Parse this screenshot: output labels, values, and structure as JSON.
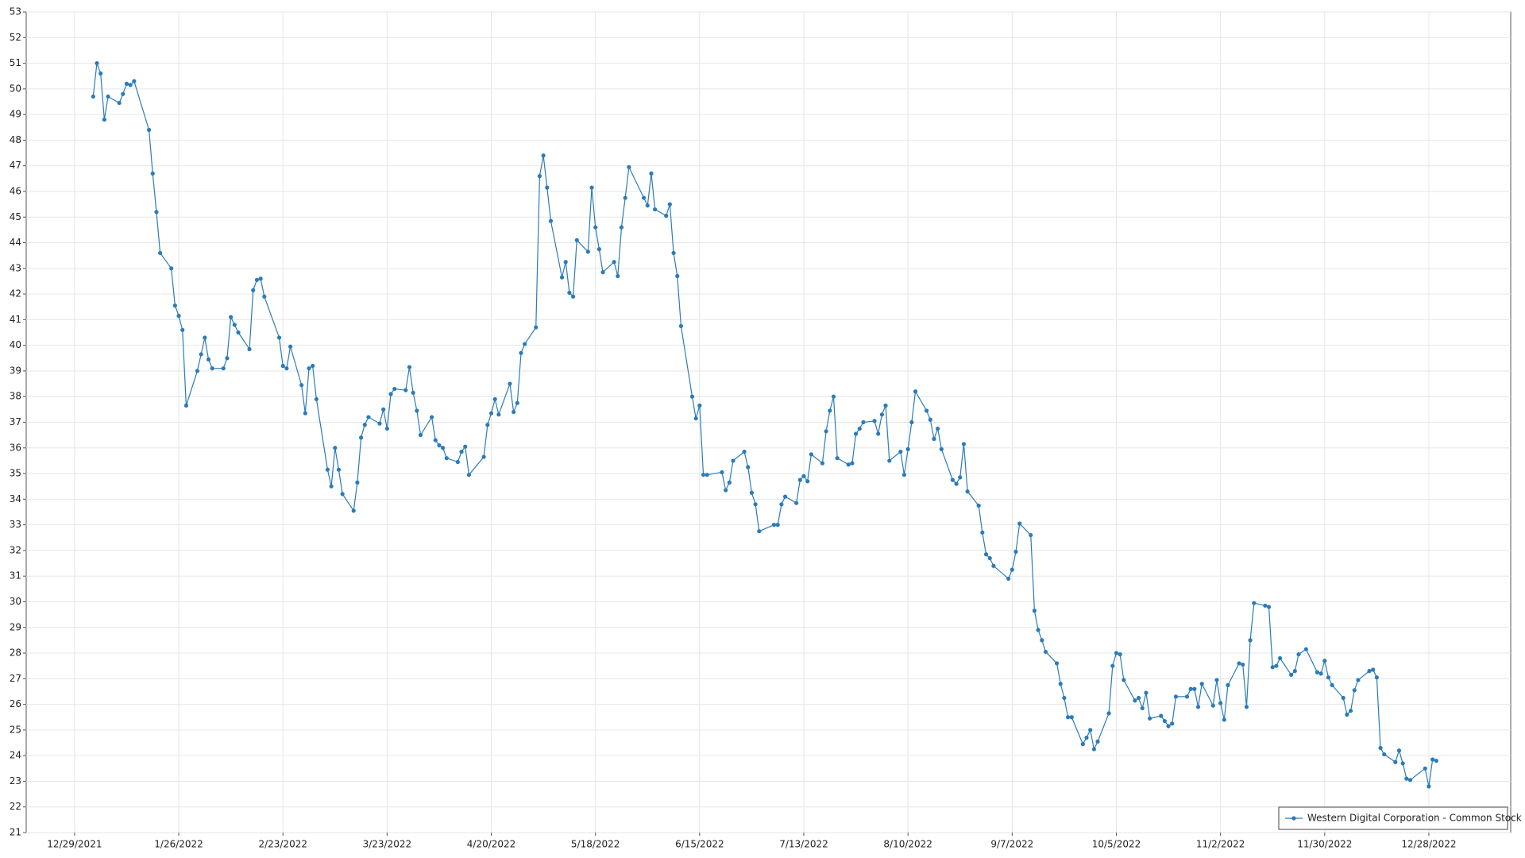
{
  "chart_data": {
    "type": "line",
    "legend": "lower right",
    "grid": true,
    "xlim": [
      "12/16/2021",
      "1/19/2023"
    ],
    "xticks": [
      "12/29/2021",
      "1/26/2022",
      "2/23/2022",
      "3/23/2022",
      "4/20/2022",
      "5/18/2022",
      "6/15/2022",
      "7/13/2022",
      "8/10/2022",
      "9/7/2022",
      "10/5/2022",
      "11/2/2022",
      "11/30/2022",
      "12/28/2022"
    ],
    "ylim": [
      21,
      53
    ],
    "yticks": [
      21,
      22,
      23,
      24,
      25,
      26,
      27,
      28,
      29,
      30,
      31,
      32,
      33,
      34,
      35,
      36,
      37,
      38,
      39,
      40,
      41,
      42,
      43,
      44,
      45,
      46,
      47,
      48,
      49,
      50,
      51,
      52,
      53
    ],
    "x": [
      "1/3/2022",
      "1/4/2022",
      "1/5/2022",
      "1/6/2022",
      "1/7/2022",
      "1/10/2022",
      "1/11/2022",
      "1/12/2022",
      "1/13/2022",
      "1/14/2022",
      "1/18/2022",
      "1/19/2022",
      "1/20/2022",
      "1/21/2022",
      "1/24/2022",
      "1/25/2022",
      "1/26/2022",
      "1/27/2022",
      "1/28/2022",
      "1/31/2022",
      "2/1/2022",
      "2/2/2022",
      "2/3/2022",
      "2/4/2022",
      "2/7/2022",
      "2/8/2022",
      "2/9/2022",
      "2/10/2022",
      "2/11/2022",
      "2/14/2022",
      "2/15/2022",
      "2/16/2022",
      "2/17/2022",
      "2/18/2022",
      "2/22/2022",
      "2/23/2022",
      "2/24/2022",
      "2/25/2022",
      "2/28/2022",
      "3/1/2022",
      "3/2/2022",
      "3/3/2022",
      "3/4/2022",
      "3/7/2022",
      "3/8/2022",
      "3/9/2022",
      "3/10/2022",
      "3/11/2022",
      "3/14/2022",
      "3/15/2022",
      "3/16/2022",
      "3/17/2022",
      "3/18/2022",
      "3/21/2022",
      "3/22/2022",
      "3/23/2022",
      "3/24/2022",
      "3/25/2022",
      "3/28/2022",
      "3/29/2022",
      "3/30/2022",
      "3/31/2022",
      "4/1/2022",
      "4/4/2022",
      "4/5/2022",
      "4/6/2022",
      "4/7/2022",
      "4/8/2022",
      "4/11/2022",
      "4/12/2022",
      "4/13/2022",
      "4/14/2022",
      "4/18/2022",
      "4/19/2022",
      "4/20/2022",
      "4/21/2022",
      "4/22/2022",
      "4/25/2022",
      "4/26/2022",
      "4/27/2022",
      "4/28/2022",
      "4/29/2022",
      "5/2/2022",
      "5/3/2022",
      "5/4/2022",
      "5/5/2022",
      "5/6/2022",
      "5/9/2022",
      "5/10/2022",
      "5/11/2022",
      "5/12/2022",
      "5/13/2022",
      "5/16/2022",
      "5/17/2022",
      "5/18/2022",
      "5/19/2022",
      "5/20/2022",
      "5/23/2022",
      "5/24/2022",
      "5/25/2022",
      "5/26/2022",
      "5/27/2022",
      "5/31/2022",
      "6/1/2022",
      "6/2/2022",
      "6/3/2022",
      "6/6/2022",
      "6/7/2022",
      "6/8/2022",
      "6/9/2022",
      "6/10/2022",
      "6/13/2022",
      "6/14/2022",
      "6/15/2022",
      "6/16/2022",
      "6/17/2022",
      "6/21/2022",
      "6/22/2022",
      "6/23/2022",
      "6/24/2022",
      "6/27/2022",
      "6/28/2022",
      "6/29/2022",
      "6/30/2022",
      "7/1/2022",
      "7/5/2022",
      "7/6/2022",
      "7/7/2022",
      "7/8/2022",
      "7/11/2022",
      "7/12/2022",
      "7/13/2022",
      "7/14/2022",
      "7/15/2022",
      "7/18/2022",
      "7/19/2022",
      "7/20/2022",
      "7/21/2022",
      "7/22/2022",
      "7/25/2022",
      "7/26/2022",
      "7/27/2022",
      "7/28/2022",
      "7/29/2022",
      "8/1/2022",
      "8/2/2022",
      "8/3/2022",
      "8/4/2022",
      "8/5/2022",
      "8/8/2022",
      "8/9/2022",
      "8/10/2022",
      "8/11/2022",
      "8/12/2022",
      "8/15/2022",
      "8/16/2022",
      "8/17/2022",
      "8/18/2022",
      "8/19/2022",
      "8/22/2022",
      "8/23/2022",
      "8/24/2022",
      "8/25/2022",
      "8/26/2022",
      "8/29/2022",
      "8/30/2022",
      "8/31/2022",
      "9/1/2022",
      "9/2/2022",
      "9/6/2022",
      "9/7/2022",
      "9/8/2022",
      "9/9/2022",
      "9/12/2022",
      "9/13/2022",
      "9/14/2022",
      "9/15/2022",
      "9/16/2022",
      "9/19/2022",
      "9/20/2022",
      "9/21/2022",
      "9/22/2022",
      "9/23/2022",
      "9/26/2022",
      "9/27/2022",
      "9/28/2022",
      "9/29/2022",
      "9/30/2022",
      "10/3/2022",
      "10/4/2022",
      "10/5/2022",
      "10/6/2022",
      "10/7/2022",
      "10/10/2022",
      "10/11/2022",
      "10/12/2022",
      "10/13/2022",
      "10/14/2022",
      "10/17/2022",
      "10/18/2022",
      "10/19/2022",
      "10/20/2022",
      "10/21/2022",
      "10/24/2022",
      "10/25/2022",
      "10/26/2022",
      "10/27/2022",
      "10/28/2022",
      "10/31/2022",
      "11/1/2022",
      "11/2/2022",
      "11/3/2022",
      "11/4/2022",
      "11/7/2022",
      "11/8/2022",
      "11/9/2022",
      "11/10/2022",
      "11/11/2022",
      "11/14/2022",
      "11/15/2022",
      "11/16/2022",
      "11/17/2022",
      "11/18/2022",
      "11/21/2022",
      "11/22/2022",
      "11/23/2022",
      "11/25/2022",
      "11/28/2022",
      "11/29/2022",
      "11/30/2022",
      "12/1/2022",
      "12/2/2022",
      "12/5/2022",
      "12/6/2022",
      "12/7/2022",
      "12/8/2022",
      "12/9/2022",
      "12/12/2022",
      "12/13/2022",
      "12/14/2022",
      "12/15/2022",
      "12/16/2022",
      "12/19/2022",
      "12/20/2022",
      "12/21/2022",
      "12/22/2022",
      "12/23/2022",
      "12/27/2022",
      "12/28/2022",
      "12/29/2022",
      "12/30/2022"
    ],
    "series": [
      {
        "name": "Western Digital Corporation - Common Stock",
        "color": "#2b7bb9",
        "values": [
          49.7,
          51.0,
          50.6,
          48.8,
          49.7,
          49.45,
          49.8,
          50.2,
          50.15,
          50.3,
          48.4,
          46.7,
          45.2,
          43.6,
          43.0,
          41.55,
          41.15,
          40.6,
          37.65,
          39.0,
          39.65,
          40.3,
          39.45,
          39.1,
          39.1,
          39.5,
          41.1,
          40.8,
          40.5,
          39.85,
          42.15,
          42.55,
          42.6,
          41.9,
          40.3,
          39.2,
          39.1,
          39.95,
          38.45,
          37.35,
          39.1,
          39.2,
          37.9,
          35.15,
          34.5,
          36.0,
          35.15,
          34.2,
          33.55,
          34.65,
          36.4,
          36.9,
          37.2,
          36.95,
          37.5,
          36.75,
          38.1,
          38.3,
          38.25,
          39.15,
          38.15,
          37.45,
          36.5,
          37.2,
          36.3,
          36.1,
          36.0,
          35.6,
          35.45,
          35.85,
          36.05,
          34.95,
          35.65,
          36.9,
          37.35,
          37.9,
          37.3,
          38.5,
          37.4,
          37.75,
          39.7,
          40.05,
          40.7,
          46.6,
          47.4,
          46.15,
          44.85,
          42.65,
          43.25,
          42.05,
          41.9,
          44.1,
          43.65,
          46.15,
          44.6,
          43.75,
          42.85,
          43.25,
          42.7,
          44.6,
          45.75,
          46.95,
          45.75,
          45.45,
          46.7,
          45.3,
          45.05,
          45.5,
          43.6,
          42.7,
          40.75,
          38.0,
          37.15,
          37.65,
          34.95,
          34.95,
          35.05,
          34.35,
          34.65,
          35.5,
          35.85,
          35.25,
          34.25,
          33.8,
          32.75,
          33.0,
          33.0,
          33.8,
          34.1,
          33.85,
          34.75,
          34.9,
          34.7,
          35.75,
          35.4,
          36.65,
          37.45,
          38.0,
          35.6,
          35.35,
          35.4,
          36.55,
          36.75,
          37.0,
          37.05,
          36.55,
          37.3,
          37.65,
          35.5,
          35.85,
          34.95,
          35.95,
          37.0,
          38.2,
          37.45,
          37.1,
          36.35,
          36.75,
          35.95,
          34.75,
          34.6,
          34.85,
          36.15,
          34.3,
          33.75,
          32.7,
          31.85,
          31.7,
          31.4,
          30.9,
          31.25,
          31.95,
          33.05,
          32.6,
          29.65,
          28.9,
          28.5,
          28.05,
          27.6,
          26.8,
          26.25,
          25.5,
          25.5,
          24.45,
          24.7,
          25.0,
          24.25,
          24.55,
          25.65,
          27.5,
          28.0,
          27.95,
          26.95,
          26.15,
          26.25,
          25.85,
          26.45,
          25.45,
          25.55,
          25.35,
          25.15,
          25.25,
          26.3,
          26.3,
          26.6,
          26.6,
          25.9,
          26.8,
          25.95,
          26.95,
          26.05,
          25.4,
          26.75,
          27.6,
          27.55,
          25.9,
          28.5,
          29.95,
          29.85,
          29.8,
          27.45,
          27.5,
          27.8,
          27.15,
          27.3,
          27.95,
          28.15,
          27.25,
          27.2,
          27.7,
          27.05,
          26.75,
          26.25,
          25.6,
          25.75,
          26.55,
          26.95,
          27.3,
          27.35,
          27.05,
          24.3,
          24.05,
          23.75,
          24.2,
          23.7,
          23.1,
          23.05,
          23.5,
          22.8,
          23.85,
          23.8
        ]
      }
    ]
  }
}
